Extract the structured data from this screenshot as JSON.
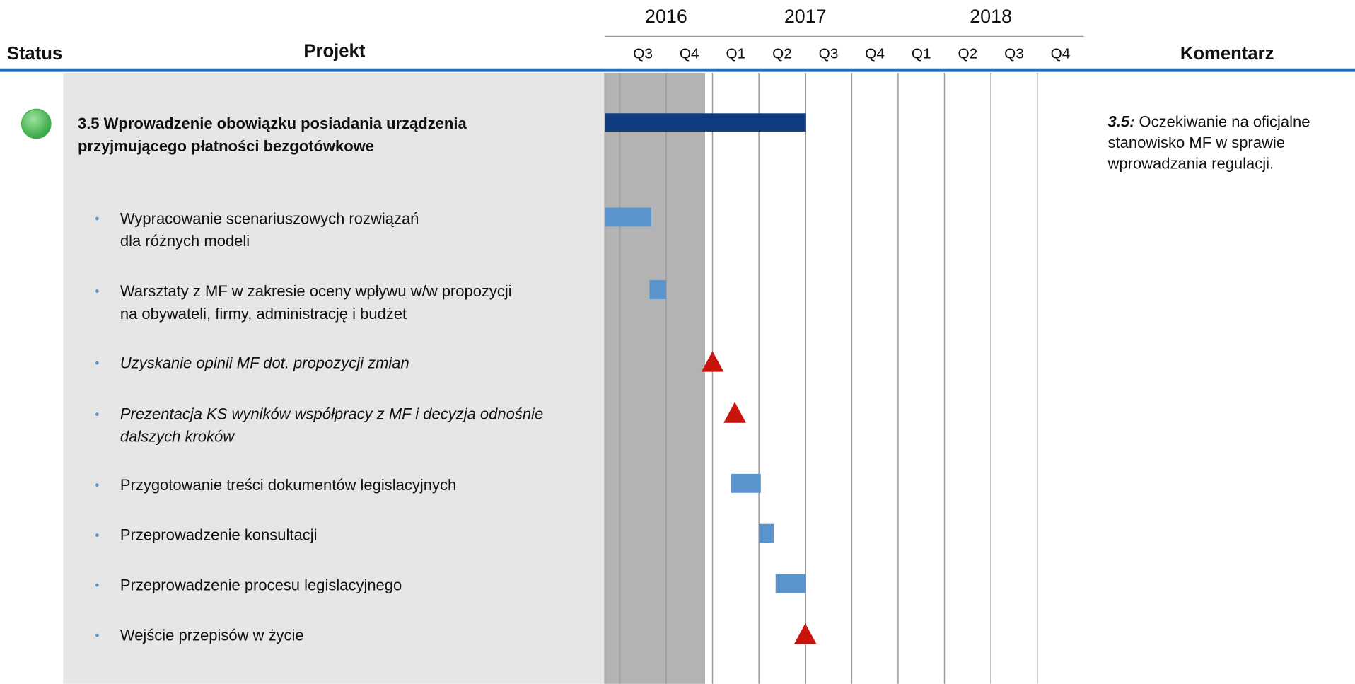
{
  "chart_data": {
    "type": "gantt",
    "headers": {
      "status": "Status",
      "project": "Projekt",
      "comment": "Komentarz"
    },
    "years": [
      {
        "label": "2016",
        "quarters": [
          "Q3",
          "Q4"
        ]
      },
      {
        "label": "2017",
        "quarters": [
          "Q1",
          "Q2",
          "Q3",
          "Q4"
        ]
      },
      {
        "label": "2018",
        "quarters": [
          "Q1",
          "Q2",
          "Q3",
          "Q4"
        ]
      }
    ],
    "xlim": [
      2016.42,
      2019.0
    ],
    "shaded_until": 2016.96,
    "status_color": "#3cb64a",
    "bar_color": "#5b93cc",
    "main_color": "#0f3b7f",
    "milestone_color": "#c8140c",
    "main": {
      "lines": [
        "3.5 Wprowadzenie obowiązku posiadania urządzenia",
        "przyjmującego płatności bezgotówkowe"
      ],
      "start": 2016.42,
      "end": 2017.5
    },
    "tasks": [
      {
        "lines": [
          "Wypracowanie scenariuszowych rozwiązań",
          "dla różnych modeli"
        ],
        "italic": false,
        "start": 2016.42,
        "end": 2016.67
      },
      {
        "lines": [
          "Warsztaty z MF w zakresie oceny wpływu w/w propozycji",
          "na obywateli, firmy, administrację i budżet"
        ],
        "italic": false,
        "start": 2016.66,
        "end": 2016.75
      },
      {
        "lines": [
          "Uzyskanie opinii MF dot. propozycji zmian"
        ],
        "italic": true,
        "date": 2017.0
      },
      {
        "lines": [
          "Prezentacja KS wyników współpracy z MF i decyzja odnośnie",
          "dalszych kroków"
        ],
        "italic": true,
        "date": 2017.12
      },
      {
        "lines": [
          "Przygotowanie treści dokumentów legislacyjnych"
        ],
        "italic": false,
        "start": 2017.1,
        "end": 2017.26
      },
      {
        "lines": [
          "Przeprowadzenie konsultacji"
        ],
        "italic": false,
        "start": 2017.25,
        "end": 2017.33
      },
      {
        "lines": [
          "Przeprowadzenie procesu legislacyjnego"
        ],
        "italic": false,
        "start": 2017.34,
        "end": 2017.5
      },
      {
        "lines": [
          "Wejście przepisów w życie"
        ],
        "italic": false,
        "date": 2017.5
      }
    ],
    "comment": {
      "label": "3.5:",
      "lines": [
        "Oczekiwanie na oficjalne",
        "stanowisko MF w sprawie",
        "wprowadzania regulacji."
      ]
    }
  }
}
